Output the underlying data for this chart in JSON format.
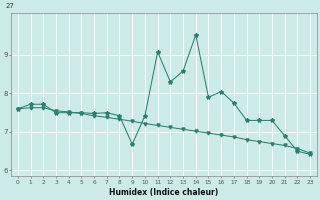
{
  "xlabel": "Humidex (Indice chaleur)",
  "bg_color": "#cceae7",
  "line_color": "#2e7d6e",
  "xlim": [
    -0.5,
    23.5
  ],
  "ylim": [
    5.85,
    10.1
  ],
  "yticks": [
    6,
    7,
    8,
    9
  ],
  "xticks": [
    0,
    1,
    2,
    3,
    4,
    5,
    6,
    7,
    8,
    9,
    10,
    11,
    12,
    13,
    14,
    15,
    16,
    17,
    18,
    19,
    20,
    21,
    22,
    23
  ],
  "line1_x": [
    0,
    1,
    2,
    3,
    4,
    5,
    6,
    7,
    8,
    9,
    10,
    11,
    12,
    13,
    14,
    15,
    16,
    17,
    18,
    19,
    20,
    21,
    22,
    23
  ],
  "line1_y": [
    7.6,
    7.72,
    7.72,
    7.5,
    7.5,
    7.5,
    7.48,
    7.5,
    7.42,
    6.68,
    7.42,
    9.08,
    8.3,
    8.58,
    9.52,
    7.9,
    8.05,
    7.75,
    7.3,
    7.3,
    7.3,
    6.9,
    6.5,
    6.42
  ],
  "line2_x": [
    0,
    1,
    2,
    3,
    4,
    5,
    6,
    7,
    8,
    9,
    10,
    11,
    12,
    13,
    14,
    15,
    16,
    17,
    18,
    19,
    20,
    21,
    22,
    23
  ],
  "line2_y": [
    7.6,
    7.63,
    7.63,
    7.55,
    7.52,
    7.48,
    7.42,
    7.38,
    7.33,
    7.28,
    7.22,
    7.17,
    7.12,
    7.07,
    7.02,
    6.97,
    6.92,
    6.87,
    6.8,
    6.75,
    6.7,
    6.65,
    6.57,
    6.45
  ],
  "top_label": "27",
  "grid_color": "#b0ddd8"
}
